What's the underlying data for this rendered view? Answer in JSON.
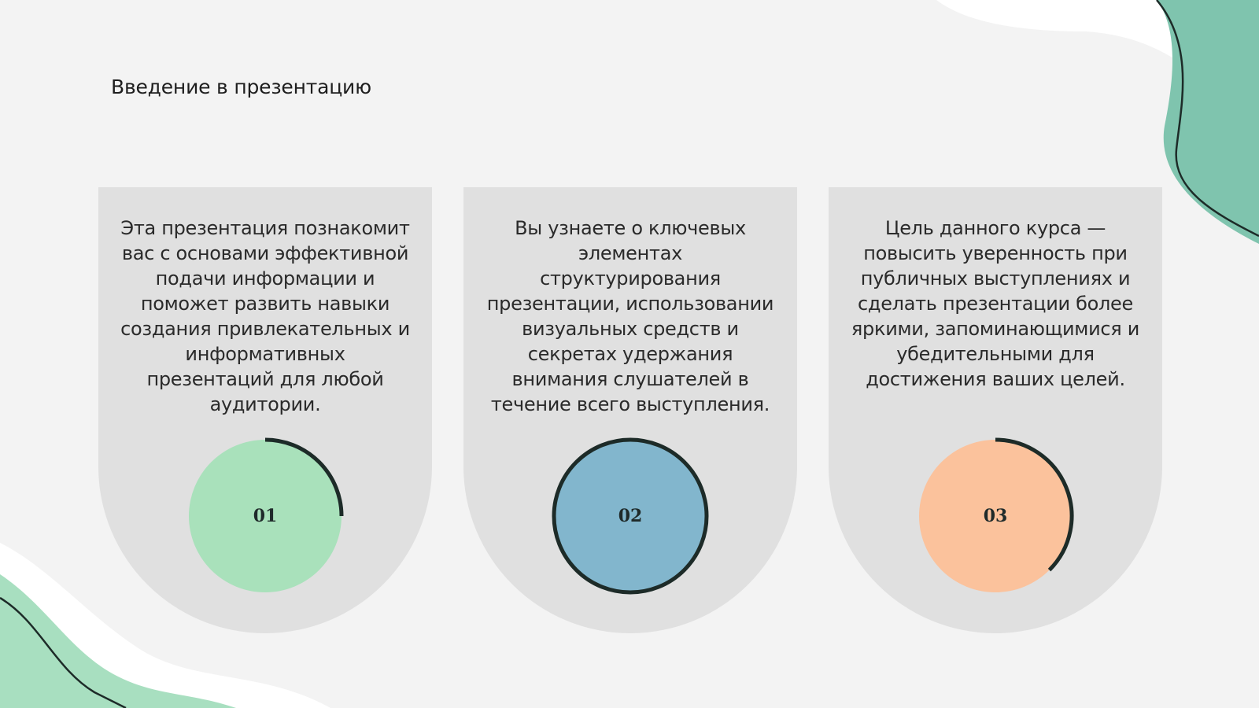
{
  "header": {
    "title": "Введение в презентацию"
  },
  "cards": [
    {
      "text": "Эта презентация познакомит вас с основами эффективной подачи информации и поможет развить навыки создания привлекательных и информативных презентаций для любой аудитории.",
      "number": "01"
    },
    {
      "text": "Вы узнаете о ключевых элементах структурирования презентации, использовании визуальных средств и секретах удержания внимания слушателей в течение всего выступления.",
      "number": "02"
    },
    {
      "text": "Цель данного курса — повысить уверенность при публичных выступлениях и сделать презентации более яркими, запоминающимися и убедительными для достижения ваших целей.",
      "number": "03"
    }
  ]
}
